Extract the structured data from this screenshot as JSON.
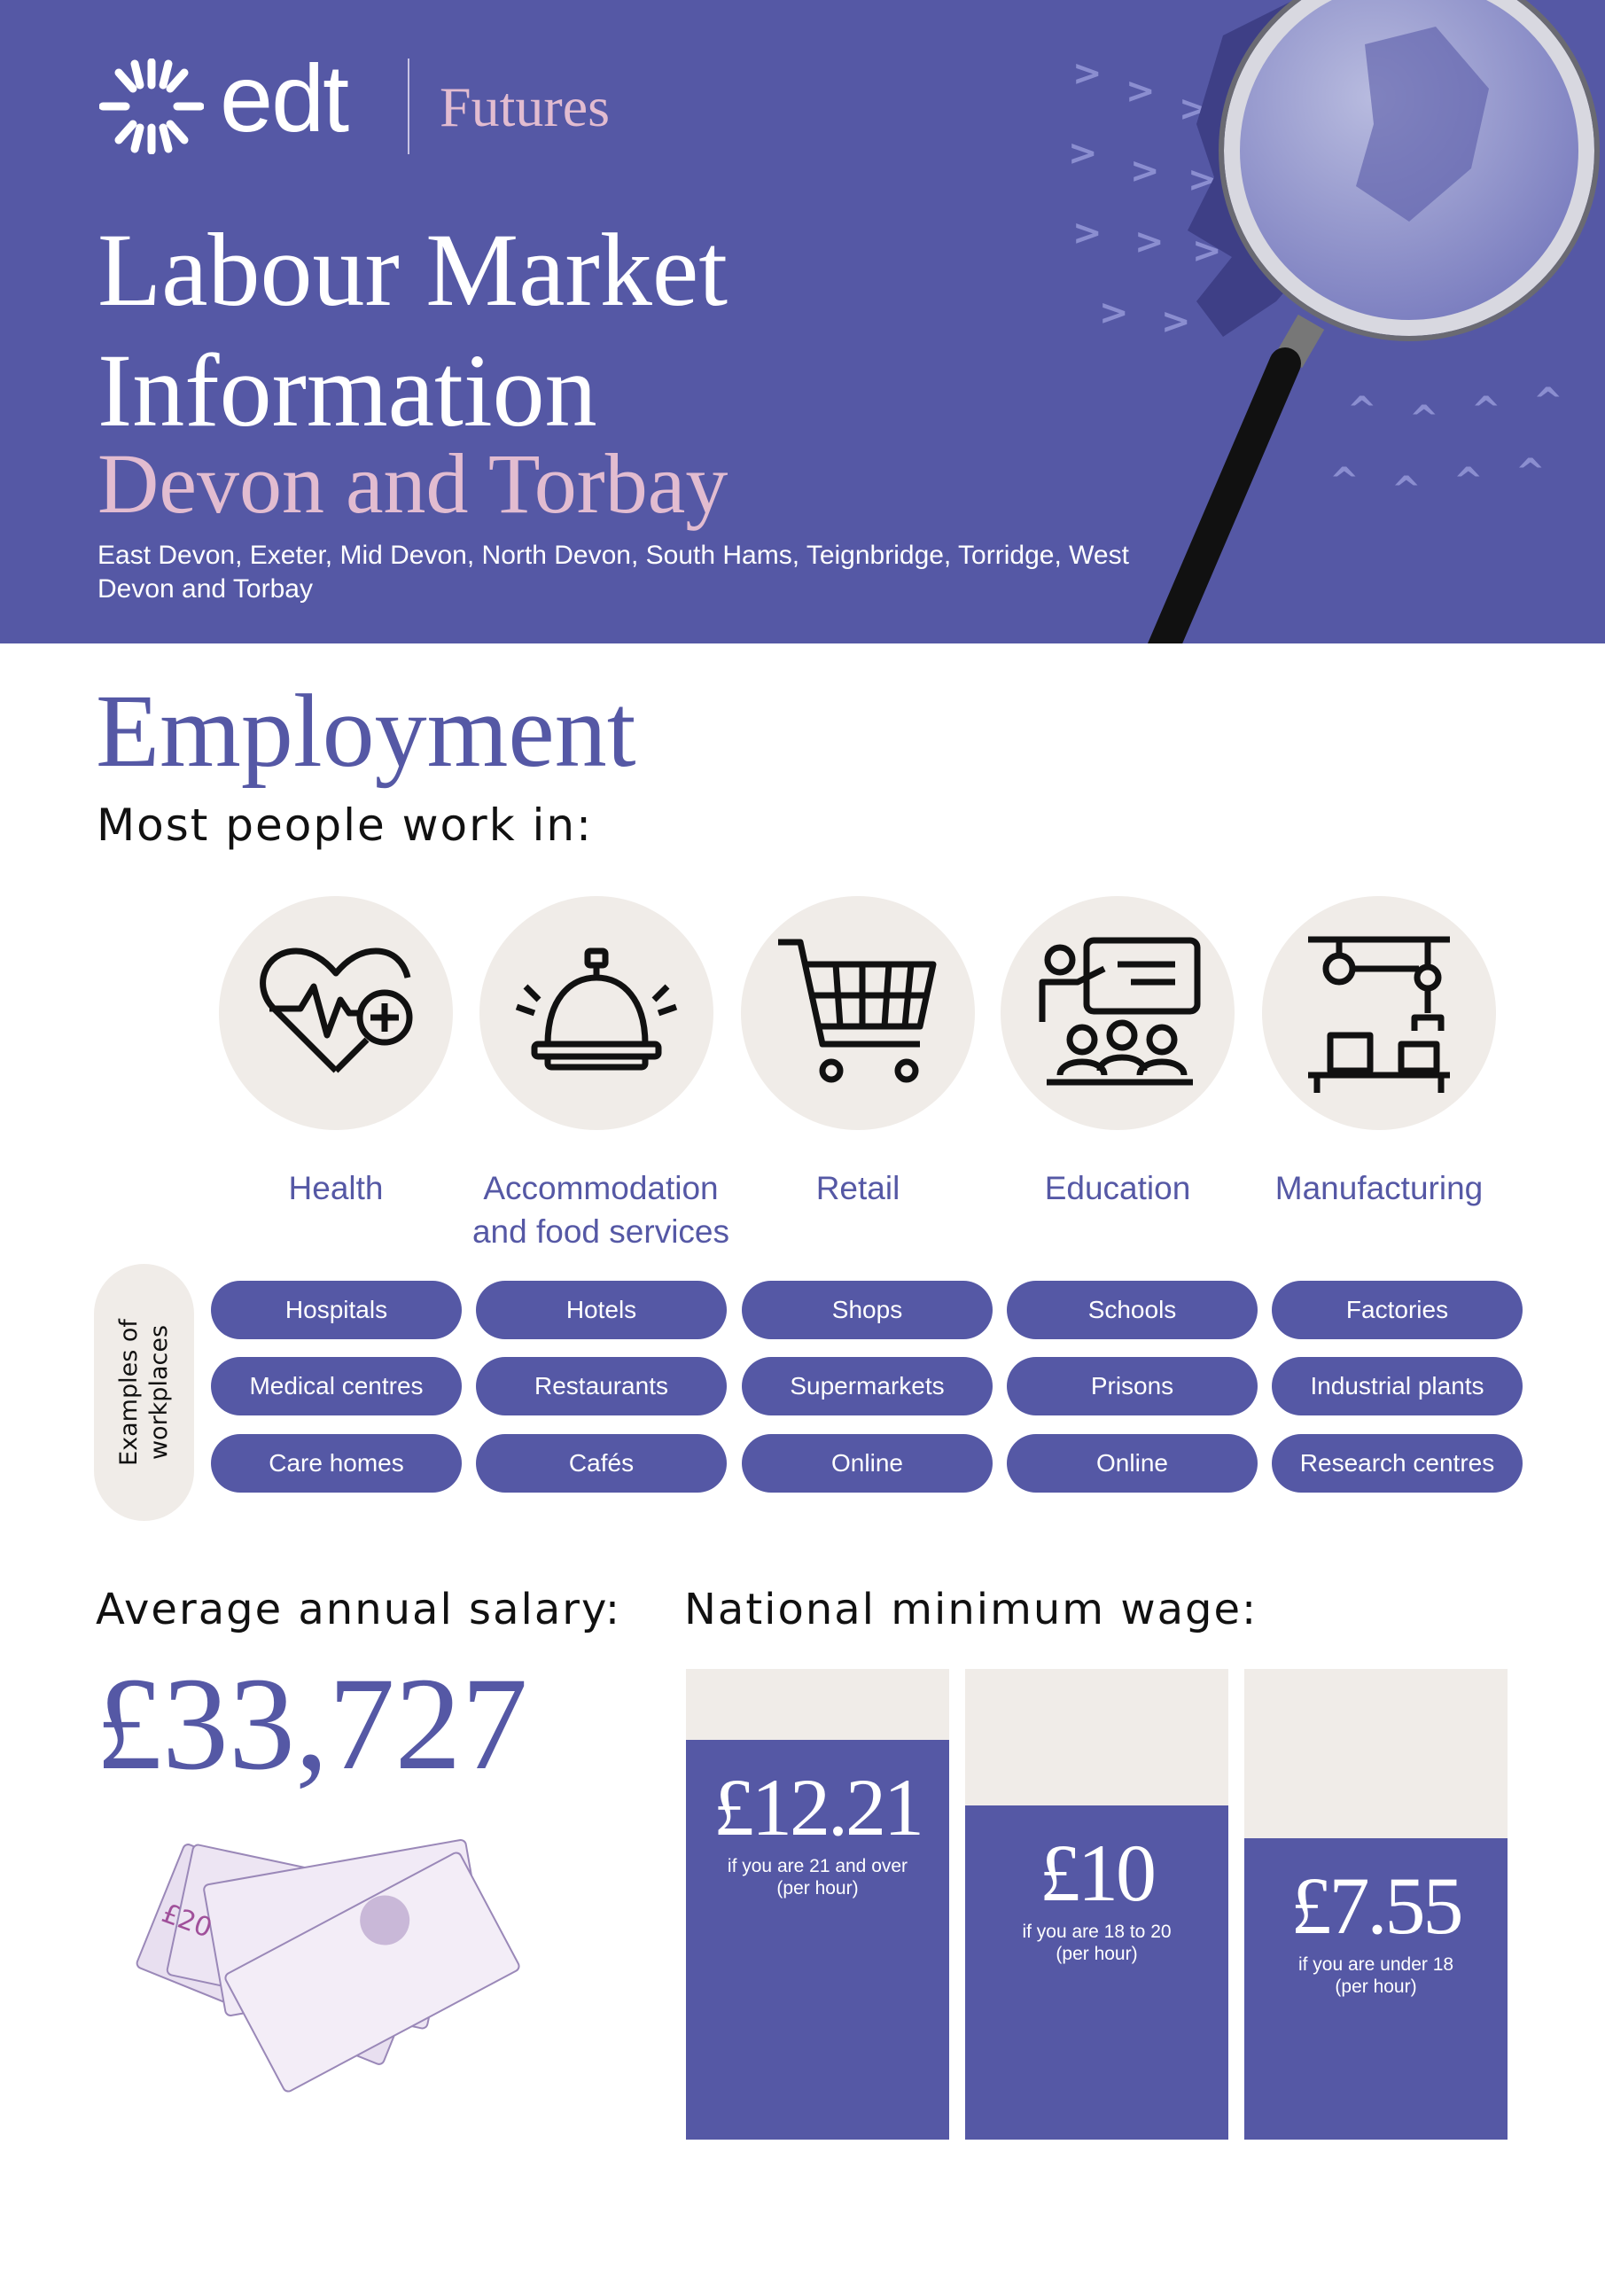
{
  "header": {
    "logo_text": "edt",
    "brand_sub": "Futures",
    "title_line1": "Labour Market",
    "title_line2": "Information",
    "region": "Devon and Torbay",
    "areas": "East Devon, Exeter, Mid Devon, North Devon, South Hams, Teignbridge, Torridge, West Devon and Torbay"
  },
  "employment": {
    "heading": "Employment",
    "intro": "Most people work in:",
    "examples_label": "Examples of workplaces",
    "sectors": [
      {
        "label": "Health",
        "icon": "heart-rate-plus-icon",
        "workplaces": [
          "Hospitals",
          "Medical centres",
          "Care homes"
        ]
      },
      {
        "label": "Accommodation and food services",
        "icon": "service-bell-icon",
        "workplaces": [
          "Hotels",
          "Restaurants",
          "Cafés"
        ]
      },
      {
        "label": "Retail",
        "icon": "shopping-cart-icon",
        "workplaces": [
          "Shops",
          "Supermarkets",
          "Online"
        ]
      },
      {
        "label": "Education",
        "icon": "classroom-teacher-icon",
        "workplaces": [
          "Schools",
          "Prisons",
          "Online"
        ]
      },
      {
        "label": "Manufacturing",
        "icon": "robotic-arm-icon",
        "workplaces": [
          "Factories",
          "Industrial plants",
          "Research centres"
        ]
      }
    ]
  },
  "salary": {
    "label": "Average annual salary:",
    "value": "£33,727"
  },
  "minimum_wage": {
    "label": "National minimum wage:",
    "bars": [
      {
        "value": "£12.21",
        "note_line1": "if you are 21 and over",
        "note_line2": "(per hour)",
        "fill_percent": 85
      },
      {
        "value": "£10",
        "note_line1": "if you are 18 to 20",
        "note_line2": "(per hour)",
        "fill_percent": 71
      },
      {
        "value": "£7.55",
        "note_line1": "if you are under 18",
        "note_line2": "(per hour)",
        "fill_percent": 64
      }
    ]
  },
  "colors": {
    "brand_purple": "#5558a5",
    "accent_pink": "#e2bcd0",
    "neutral_beige": "#f0ece8"
  }
}
